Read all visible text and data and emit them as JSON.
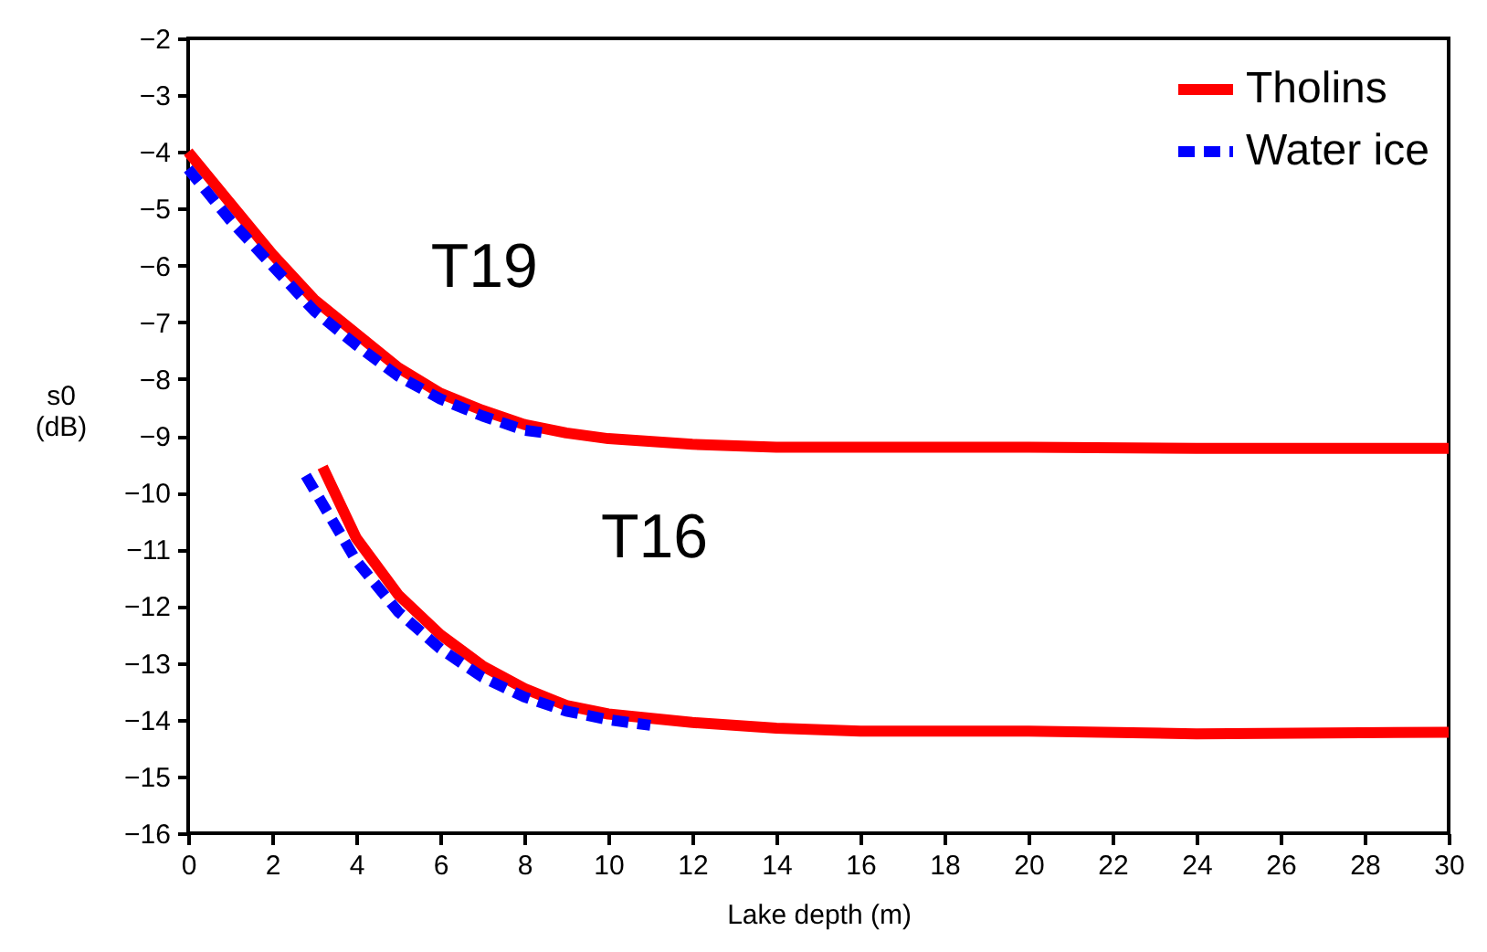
{
  "chart_data": {
    "type": "line",
    "xlabel": "Lake depth (m)",
    "ylabel": "s0 (dB)",
    "xlim": [
      0,
      30
    ],
    "xticks": [
      0,
      2,
      4,
      6,
      8,
      10,
      12,
      14,
      16,
      18,
      20,
      22,
      24,
      26,
      28,
      30
    ],
    "ylim": [
      -16,
      -2
    ],
    "yticks": [
      -16,
      -15,
      -14,
      -13,
      -12,
      -11,
      -10,
      -9,
      -8,
      -7,
      -6,
      -5,
      -4,
      -3,
      -2
    ],
    "legend": "top right",
    "grid": false,
    "marker": "none",
    "annotations": [
      "T19",
      "T16"
    ],
    "series": [
      {
        "name": "Tholins",
        "color": "#ff0000",
        "line_style": "solid",
        "x": [
          0,
          1,
          2,
          3,
          4,
          5,
          6,
          7,
          8,
          9,
          10,
          12,
          14,
          16,
          20,
          24,
          30
        ],
        "values": [
          -4.0,
          -4.9,
          -5.8,
          -6.6,
          -7.2,
          -7.8,
          -8.25,
          -8.55,
          -8.8,
          -8.95,
          -9.05,
          -9.15,
          -9.2,
          -9.2,
          -9.2,
          -9.22,
          -9.22
        ]
      },
      {
        "name": "Water ice",
        "color": "#0000ff",
        "line_style": "dashed",
        "x": [
          0,
          1,
          2,
          3,
          4,
          5,
          6,
          7,
          8,
          8.5
        ],
        "values": [
          -4.3,
          -5.2,
          -6.0,
          -6.8,
          -7.4,
          -7.95,
          -8.35,
          -8.65,
          -8.9,
          -8.95
        ]
      },
      {
        "color": "#ff0000",
        "line_style": "solid",
        "x": [
          3.2,
          4,
          5,
          6,
          7,
          8,
          9,
          10,
          12,
          14,
          16,
          20,
          24,
          30
        ],
        "values": [
          -9.55,
          -10.8,
          -11.8,
          -12.5,
          -13.05,
          -13.45,
          -13.75,
          -13.9,
          -14.05,
          -14.15,
          -14.2,
          -14.2,
          -14.25,
          -14.22
        ]
      },
      {
        "color": "#0000ff",
        "line_style": "dashed",
        "x": [
          2.8,
          4,
          5,
          6,
          7,
          8,
          9,
          10,
          11
        ],
        "values": [
          -9.7,
          -11.2,
          -12.1,
          -12.75,
          -13.25,
          -13.6,
          -13.85,
          -14.0,
          -14.1
        ]
      }
    ]
  }
}
